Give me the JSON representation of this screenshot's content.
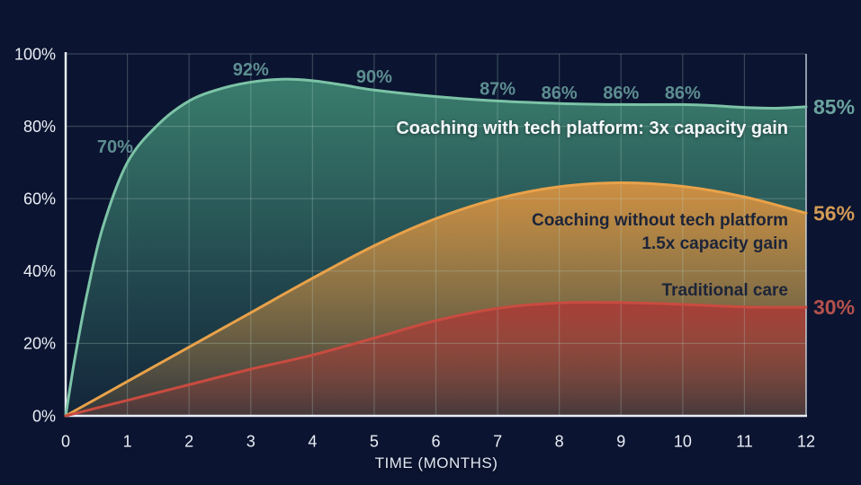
{
  "colors": {
    "background": "#0b1430",
    "grid": "rgba(186,221,209,0.25)",
    "axis": "#e8edf5",
    "right_border": "rgba(220,228,240,0.75)",
    "tick_text": "#e9eef6",
    "point_label_text": "#5d8e91"
  },
  "chart_data": {
    "type": "area",
    "xlabel": "TIME (MONTHS)",
    "xlim": [
      0,
      12
    ],
    "ylim": [
      0,
      100
    ],
    "grid": "on",
    "x_ticks": [
      "0",
      "1",
      "2",
      "3",
      "4",
      "5",
      "6",
      "7",
      "8",
      "9",
      "10",
      "11",
      "12"
    ],
    "y_ticks": [
      {
        "v": 0,
        "label": "0%"
      },
      {
        "v": 20,
        "label": "20%"
      },
      {
        "v": 40,
        "label": "40%"
      },
      {
        "v": 60,
        "label": "60%"
      },
      {
        "v": 80,
        "label": "80%"
      },
      {
        "v": 100,
        "label": "100%"
      }
    ],
    "series": [
      {
        "name": "Coaching with tech platform: 3x capacity gain",
        "lines": [
          "Coaching with tech platform: 3x capacity gain"
        ],
        "stroke": "#7cc3a7",
        "fill": "#3c8270",
        "grad_top_value": 93,
        "points": [
          [
            0,
            0
          ],
          [
            0.15,
            16
          ],
          [
            0.35,
            34
          ],
          [
            0.6,
            52
          ],
          [
            1,
            70
          ],
          [
            1.5,
            80.5
          ],
          [
            2,
            87
          ],
          [
            2.5,
            90.3
          ],
          [
            3,
            92.2
          ],
          [
            3.5,
            93
          ],
          [
            4,
            92.6
          ],
          [
            4.5,
            91.4
          ],
          [
            5,
            90
          ],
          [
            6,
            88.2
          ],
          [
            7,
            87
          ],
          [
            8,
            86.3
          ],
          [
            9,
            86
          ],
          [
            10,
            86
          ],
          [
            10.5,
            85.7
          ],
          [
            11,
            85.2
          ],
          [
            11.5,
            85
          ],
          [
            12,
            85.4
          ]
        ],
        "point_labels": [
          {
            "m": 0.8,
            "v": 74.5,
            "text": "70%"
          },
          {
            "m": 3,
            "v": 95.8,
            "text": "92%"
          },
          {
            "m": 5,
            "v": 93.8,
            "text": "90%"
          },
          {
            "m": 7,
            "v": 90.5,
            "text": "87%"
          },
          {
            "m": 8,
            "v": 89.3,
            "text": "86%"
          },
          {
            "m": 9,
            "v": 89.3,
            "text": "86%"
          },
          {
            "m": 10,
            "v": 89.3,
            "text": "86%"
          }
        ],
        "end_label": {
          "text": "85%",
          "color": "#6ba39f"
        }
      },
      {
        "name": "Coaching without tech platform 1.5x capacity gain",
        "lines": [
          "Coaching without tech platform",
          "1.5x capacity gain"
        ],
        "stroke": "#e9a24a",
        "fill": "#d69140",
        "grad_top_value": 64.4,
        "points": [
          [
            0,
            0
          ],
          [
            1,
            9.5
          ],
          [
            2,
            19
          ],
          [
            3,
            28.5
          ],
          [
            4,
            38
          ],
          [
            5,
            47
          ],
          [
            6,
            54.5
          ],
          [
            7,
            60
          ],
          [
            8,
            63.3
          ],
          [
            9,
            64.4
          ],
          [
            10,
            63.4
          ],
          [
            11,
            60.5
          ],
          [
            12,
            56
          ]
        ],
        "point_labels": [],
        "end_label": {
          "text": "56%",
          "color": "#d29a55"
        }
      },
      {
        "name": "Traditional care",
        "lines": [
          "Traditional care"
        ],
        "stroke": "#c94b40",
        "fill": "#a83c37",
        "grad_top_value": 31.3,
        "points": [
          [
            0,
            0
          ],
          [
            1,
            4.3
          ],
          [
            2,
            8.6
          ],
          [
            3,
            12.9
          ],
          [
            4,
            16.8
          ],
          [
            5,
            21.5
          ],
          [
            6,
            26.3
          ],
          [
            7,
            29.7
          ],
          [
            8,
            31.2
          ],
          [
            9,
            31.3
          ],
          [
            10,
            30.8
          ],
          [
            11,
            30.1
          ],
          [
            12,
            30
          ]
        ],
        "point_labels": [],
        "end_label": {
          "text": "30%",
          "color": "#b5524c"
        }
      }
    ]
  }
}
